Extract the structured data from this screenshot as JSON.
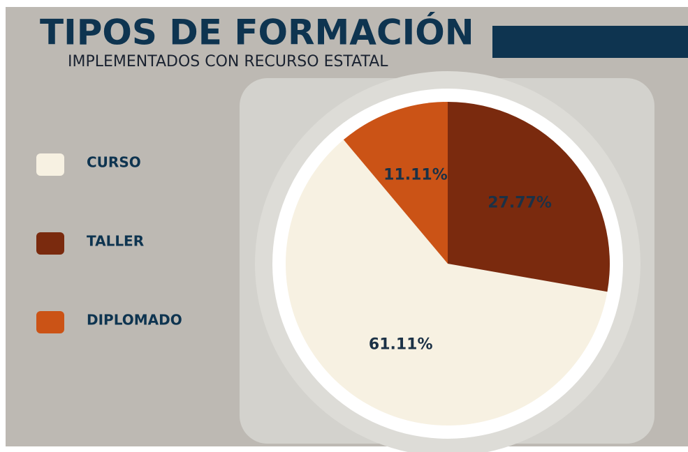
{
  "chart_data": {
    "type": "pie",
    "title": "TIPOS DE FORMACIÓN",
    "subtitle": "IMPLEMENTADOS CON RECURSO ESTATAL",
    "categories": [
      "CURSO",
      "TALLER",
      "DIPLOMADO"
    ],
    "values": [
      61.11,
      27.77,
      11.11
    ],
    "value_labels": [
      "61.11%",
      "27.77%",
      "11.11%"
    ],
    "colors": [
      "#f7f1e2",
      "#7a2a0e",
      "#cb5316"
    ],
    "start_angle": -40,
    "direction": "counterclockwise",
    "legend": "left"
  }
}
